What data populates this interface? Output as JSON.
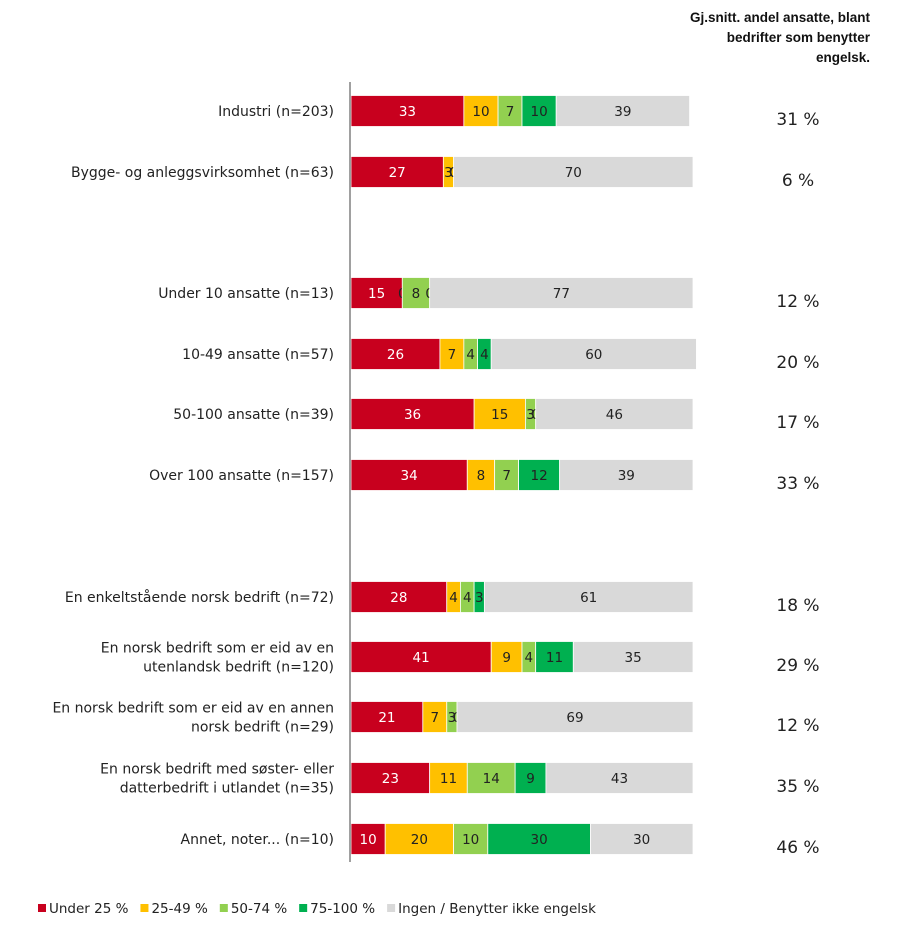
{
  "chart_data": {
    "type": "bar",
    "stacked": true,
    "orientation": "horizontal",
    "xlim": [
      0,
      100
    ],
    "categories": [
      "Industri (n=203)",
      "Bygge- og anleggsvirksomhet (n=63)",
      "Under 10 ansatte (n=13)",
      "10-49 ansatte (n=57)",
      "50-100 ansatte (n=39)",
      "Over 100 ansatte (n=157)",
      "En enkeltstående norsk bedrift (n=72)",
      "En norsk bedrift som er eid av en utenlandsk bedrift (n=120)",
      "En norsk bedrift som er eid av en annen norsk bedrift (n=29)",
      "En norsk bedrift med søster- eller datterbedrift i utlandet (n=35)",
      "Annet, noter... (n=10)"
    ],
    "category_lines": [
      [
        "Industri (n=203)"
      ],
      [
        "Bygge- og anleggsvirksomhet (n=63)"
      ],
      [
        "Under 10 ansatte (n=13)"
      ],
      [
        "10-49 ansatte (n=57)"
      ],
      [
        "50-100 ansatte (n=39)"
      ],
      [
        "Over 100 ansatte (n=157)"
      ],
      [
        "En enkeltstående norsk bedrift (n=72)"
      ],
      [
        "En norsk bedrift som er eid av en",
        "utenlandsk bedrift (n=120)"
      ],
      [
        "En norsk bedrift som er eid av en annen",
        "norsk bedrift (n=29)"
      ],
      [
        "En norsk bedrift med søster- eller",
        "datterbedrift i utlandet (n=35)"
      ],
      [
        "Annet, noter... (n=10)"
      ]
    ],
    "series": [
      {
        "name": "Under 25 %",
        "color": "#c8001e",
        "label_color": "#ffffff",
        "values": [
          33,
          27,
          15,
          26,
          36,
          34,
          28,
          41,
          21,
          23,
          10
        ]
      },
      {
        "name": "25-49 %",
        "color": "#ffc000",
        "label_color": "#222222",
        "values": [
          10,
          3,
          0,
          7,
          15,
          8,
          4,
          9,
          7,
          11,
          20
        ]
      },
      {
        "name": "50-74 %",
        "color": "#92d050",
        "label_color": "#222222",
        "values": [
          7,
          0,
          8,
          4,
          3,
          7,
          4,
          4,
          3,
          14,
          10
        ]
      },
      {
        "name": "75-100 %",
        "color": "#00b050",
        "label_color": "#222222",
        "values": [
          10,
          0,
          0,
          4,
          0,
          12,
          3,
          11,
          0,
          9,
          30
        ]
      },
      {
        "name": "Ingen / Benytter ikke engelsk",
        "color": "#d9d9d9",
        "label_color": "#222222",
        "values": [
          39,
          70,
          77,
          60,
          46,
          39,
          61,
          35,
          69,
          43,
          30
        ]
      }
    ],
    "side_header": [
      "Gj.snitt. andel ansatte, blant",
      "bedrifter som benytter",
      "engelsk."
    ],
    "side_values": [
      "31 %",
      "6 %",
      "12 %",
      "20 %",
      "17 %",
      "33 %",
      "18 %",
      "29 %",
      "12 %",
      "35 %",
      "46 %"
    ],
    "legend_position": "bottom"
  }
}
